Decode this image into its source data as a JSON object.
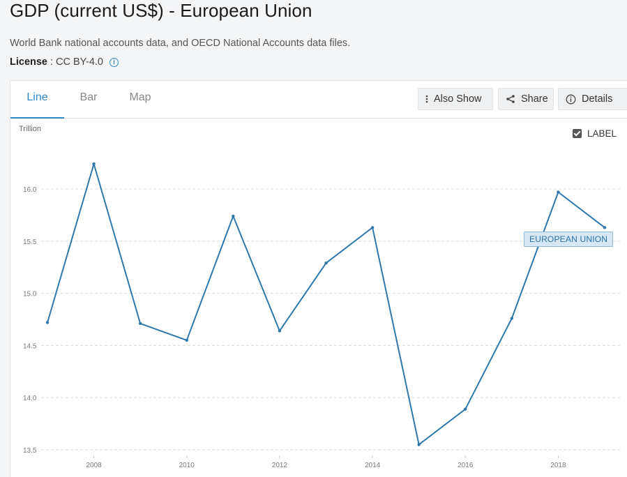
{
  "page": {
    "title": "GDP (current US$) - European Union",
    "source": "World Bank national accounts data, and OECD National Accounts data files.",
    "license_label": "License",
    "license_sep": ":",
    "license_value": "CC BY-4.0"
  },
  "tabs": [
    {
      "label": "Line",
      "active": true
    },
    {
      "label": "Bar",
      "active": false
    },
    {
      "label": "Map",
      "active": false
    }
  ],
  "actions": {
    "also_show": "Also Show",
    "share": "Share",
    "details": "Details"
  },
  "label_toggle": {
    "text": "LABEL",
    "checked": true
  },
  "colors": {
    "accent": "#2b8ac6",
    "line": "#2e78ac"
  },
  "chart_data": {
    "type": "line",
    "units_label": "Trillion",
    "x": [
      2007,
      2008,
      2009,
      2010,
      2011,
      2012,
      2013,
      2014,
      2015,
      2016,
      2017,
      2018,
      2019
    ],
    "xticks": [
      2008,
      2010,
      2012,
      2014,
      2016,
      2018
    ],
    "yticks": [
      13.5,
      14.0,
      14.5,
      15.0,
      15.5,
      16.0
    ],
    "ytick_labels": [
      "13.5",
      "14.0",
      "14.5",
      "15.0",
      "15.5",
      "16.0"
    ],
    "ylim": [
      13.5,
      16.4
    ],
    "grid": true,
    "series": [
      {
        "name": "EUROPEAN UNION",
        "values": [
          14.72,
          16.24,
          14.71,
          14.55,
          15.74,
          14.64,
          15.29,
          15.63,
          13.55,
          13.89,
          14.76,
          15.97,
          15.63
        ]
      }
    ]
  }
}
